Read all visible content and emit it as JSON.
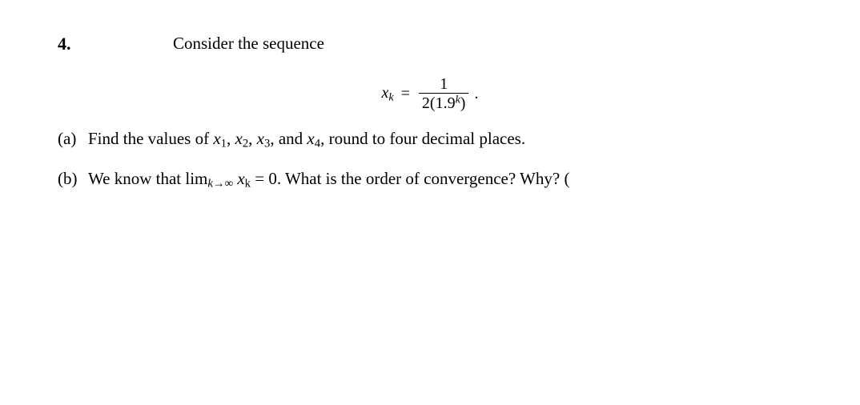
{
  "problem": {
    "number": "4.",
    "intro": "Consider the sequence",
    "equation": {
      "lhs_var": "x",
      "lhs_sub": "k",
      "eq": "=",
      "num": "1",
      "den_prefix": "2",
      "den_open": "(",
      "den_base": "1.9",
      "den_exp": "k",
      "den_close": ")",
      "after": "."
    },
    "parts": [
      {
        "label": "(a)",
        "segments": [
          {
            "t": "Find the values of "
          },
          {
            "t": "x",
            "italic": true
          },
          {
            "t": "1",
            "sub": true
          },
          {
            "t": ", "
          },
          {
            "t": "x",
            "italic": true
          },
          {
            "t": "2",
            "sub": true
          },
          {
            "t": ", "
          },
          {
            "t": "x",
            "italic": true
          },
          {
            "t": "3",
            "sub": true
          },
          {
            "t": ", and "
          },
          {
            "t": "x",
            "italic": true
          },
          {
            "t": "4",
            "sub": true
          },
          {
            "t": ", round to four decimal places."
          }
        ]
      },
      {
        "label": "(b)",
        "segments": [
          {
            "t": "We know that lim"
          },
          {
            "t": "k→∞",
            "limsub": true
          },
          {
            "t": " "
          },
          {
            "t": "x",
            "italic": true
          },
          {
            "t": "k",
            "sub": true,
            "italic": true
          },
          {
            "t": " = 0. What is the order of convergence? Why?  ("
          }
        ]
      }
    ]
  }
}
